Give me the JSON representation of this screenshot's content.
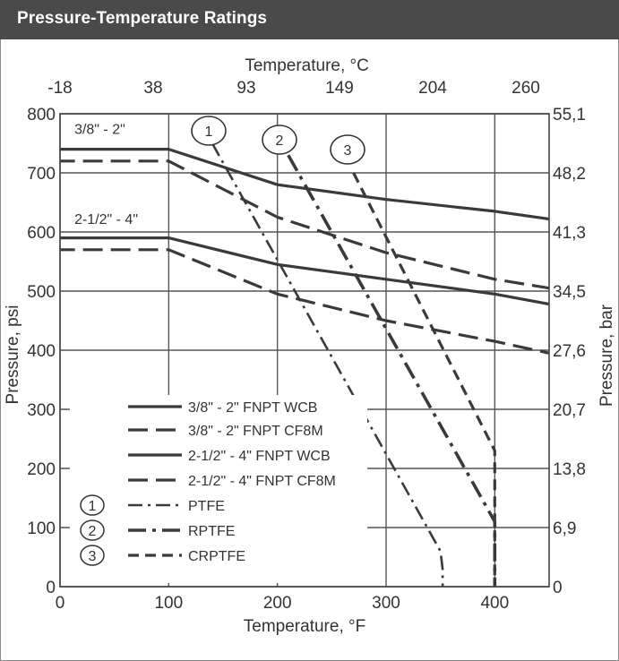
{
  "header": {
    "title": "Pressure-Temperature Ratings"
  },
  "chart_data": {
    "type": "line",
    "title": "",
    "xlabel": "Temperature, °F",
    "x2label": "Temperature, °C",
    "ylabel": "Pressure, psi",
    "y2label": "Pressure, bar",
    "xlim": [
      0,
      450
    ],
    "ylim": [
      0,
      800
    ],
    "grid": true,
    "x_ticks": [
      "0",
      "100",
      "200",
      "300",
      "400"
    ],
    "x_tick_values": [
      0,
      100,
      200,
      300,
      400
    ],
    "y_ticks": [
      "0",
      "100",
      "200",
      "300",
      "400",
      "500",
      "600",
      "700",
      "800"
    ],
    "y_tick_values": [
      0,
      100,
      200,
      300,
      400,
      500,
      600,
      700,
      800
    ],
    "x2_ticks": [
      "-18",
      "38",
      "93",
      "149",
      "204",
      "260"
    ],
    "x2_tick_values": [
      0,
      100,
      200,
      300,
      400,
      500
    ],
    "y2_ticks": [
      "0",
      "6,9",
      "13,8",
      "20,7",
      "27,6",
      "34,5",
      "41,3",
      "48,2",
      "55,1"
    ],
    "y2_tick_values": [
      0,
      100,
      200,
      300,
      400,
      500,
      600,
      700,
      800
    ],
    "annotations": [
      {
        "text": "3/8\" - 2\"",
        "x": 5,
        "y": 775
      },
      {
        "text": "2-1/2\" - 4\"",
        "x": 5,
        "y": 623
      }
    ],
    "series": [
      {
        "name": "3/8\" - 2\" FNPT WCB",
        "style": "solid",
        "x": [
          -30,
          100,
          200,
          300,
          400,
          450
        ],
        "y": [
          740,
          740,
          680,
          655,
          635,
          622
        ]
      },
      {
        "name": "3/8\" - 2\" FNPT CF8M",
        "style": "dash",
        "x": [
          -30,
          100,
          200,
          300,
          400,
          450
        ],
        "y": [
          720,
          720,
          625,
          565,
          520,
          505
        ]
      },
      {
        "name": "2-1/2\" - 4\" FNPT WCB",
        "style": "solid",
        "x": [
          -30,
          100,
          200,
          300,
          400,
          450
        ],
        "y": [
          590,
          590,
          545,
          520,
          495,
          478
        ]
      },
      {
        "name": "2-1/2\" - 4\" FNPT CF8M",
        "style": "dash",
        "x": [
          -30,
          100,
          200,
          300,
          400,
          450
        ],
        "y": [
          570,
          570,
          495,
          450,
          415,
          395
        ]
      },
      {
        "name": "PTFE",
        "marker": "1",
        "style": "dashdot-thin",
        "x": [
          140,
          350,
          352,
          352
        ],
        "y": [
          750,
          60,
          30,
          0
        ]
      },
      {
        "name": "RPTFE",
        "marker": "2",
        "style": "dashdot-thick",
        "x": [
          210,
          400,
          400
        ],
        "y": [
          730,
          110,
          0
        ]
      },
      {
        "name": "CRPTFE",
        "marker": "3",
        "style": "dash-short",
        "x": [
          270,
          400,
          400
        ],
        "y": [
          700,
          230,
          0
        ]
      }
    ]
  }
}
